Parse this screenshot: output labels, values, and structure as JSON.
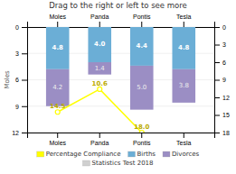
{
  "chart_data": {
    "type": "bar",
    "title": "Drag to the right or left to see more",
    "ylabel": "Moles",
    "categories": [
      "Moles",
      "Panda",
      "Pontis",
      "Tesla"
    ],
    "stacked": true,
    "data_labels": true,
    "grid": true,
    "legend": "bottom",
    "ylim": [
      12,
      0
    ],
    "yticks": [
      0,
      3,
      6,
      9,
      12
    ],
    "y2lim": [
      18,
      0
    ],
    "y2ticks": [
      0,
      3,
      6,
      9,
      12,
      15,
      18
    ],
    "series": [
      {
        "name": "Percentage Compliance",
        "type": "line",
        "axis": "y2",
        "color": "#ffff00",
        "marker": "circle",
        "values": [
          14.5,
          10.6,
          18.0,
          null
        ],
        "value_labels": [
          "14.5",
          "10.6",
          "18.0",
          null
        ]
      },
      {
        "name": "Births",
        "type": "bar",
        "color": "#6baed6",
        "values": [
          4.8,
          4.0,
          4.4,
          4.8
        ],
        "value_labels": [
          "4.8",
          "4.0",
          "4.4",
          "4.8"
        ]
      },
      {
        "name": "Divorces",
        "type": "bar",
        "color": "#9b8ec4",
        "values": [
          4.2,
          1.4,
          5.0,
          3.8
        ],
        "value_labels": [
          "4.2",
          "1.4",
          "5.0",
          "3.8"
        ]
      },
      {
        "name": "Statistics Test 2018",
        "type": "bar",
        "color": "#d0d0d0",
        "values": [
          null,
          null,
          null,
          null
        ]
      }
    ]
  }
}
